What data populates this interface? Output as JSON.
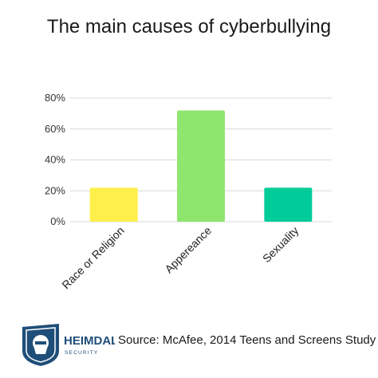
{
  "chart_data": {
    "type": "bar",
    "title": "The main causes of cyberbullying",
    "categories": [
      "Race or Religion",
      "Appereance",
      "Sexuality"
    ],
    "values": [
      22,
      72,
      22
    ],
    "colors": [
      "#ffef4a",
      "#8ee66e",
      "#00cc9a"
    ],
    "y_unit": "%",
    "ylim": [
      0,
      80
    ],
    "yticks": [
      "0%",
      "20%",
      "40%",
      "60%",
      "80%"
    ],
    "grid": true,
    "legend": "none"
  },
  "footer": {
    "logo_text": "HEIMDAL",
    "logo_subtext": "SECURITY",
    "source": "Source: McAfee, 2014 Teens and Screens Study"
  }
}
